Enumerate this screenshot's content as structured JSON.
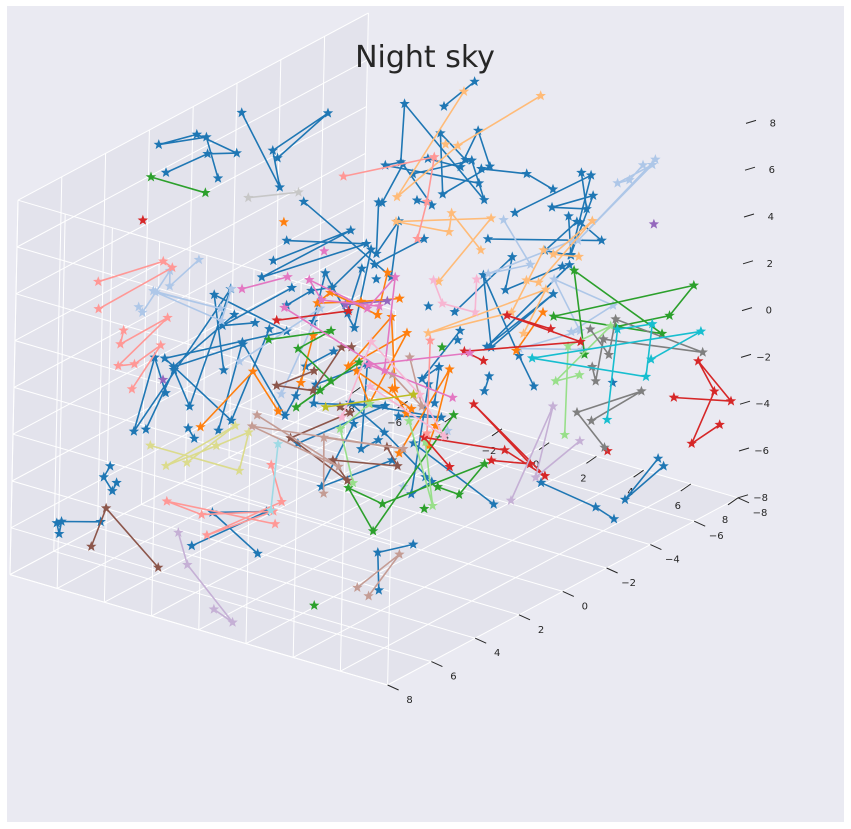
{
  "chart_data": {
    "type": "scatter",
    "title": "Night sky",
    "xlabel": "",
    "ylabel": "",
    "zlabel": "",
    "x_range": [
      -8,
      8
    ],
    "y_range": [
      -8,
      8
    ],
    "z_range": [
      -8,
      8
    ],
    "x_ticks": [
      "−8",
      "−6",
      "−4",
      "−2",
      "0",
      "2",
      "4",
      "6",
      "8"
    ],
    "y_ticks": [
      "−8",
      "−6",
      "−4",
      "−2",
      "0",
      "2",
      "4",
      "6",
      "8"
    ],
    "z_ticks": [
      "−8",
      "−6",
      "−4",
      "−2",
      "0",
      "2",
      "4",
      "6",
      "8"
    ],
    "grid": true,
    "marker": "star",
    "background_color": "#eaeaf2",
    "pane_color": "#e3e3ec",
    "grid_color": "#ffffff",
    "palette": [
      "#1f77b4",
      "#aec7e8",
      "#ff7f0e",
      "#ffbb78",
      "#2ca02c",
      "#98df8a",
      "#d62728",
      "#ff9896",
      "#9467bd",
      "#c5b0d5",
      "#8c564b",
      "#c49c94",
      "#e377c2",
      "#f7b6d2",
      "#7f7f7f",
      "#c7c7c7",
      "#bcbd22",
      "#dbdb8d",
      "#17becf",
      "#9edae5"
    ],
    "constellations_per_color": [
      40,
      8,
      8,
      5,
      7,
      3,
      6,
      5,
      3,
      2,
      3,
      3,
      4,
      2,
      2,
      1,
      1,
      1,
      1,
      1
    ],
    "stars_per_constellation_max": 7,
    "total_stars_approx": 600
  }
}
